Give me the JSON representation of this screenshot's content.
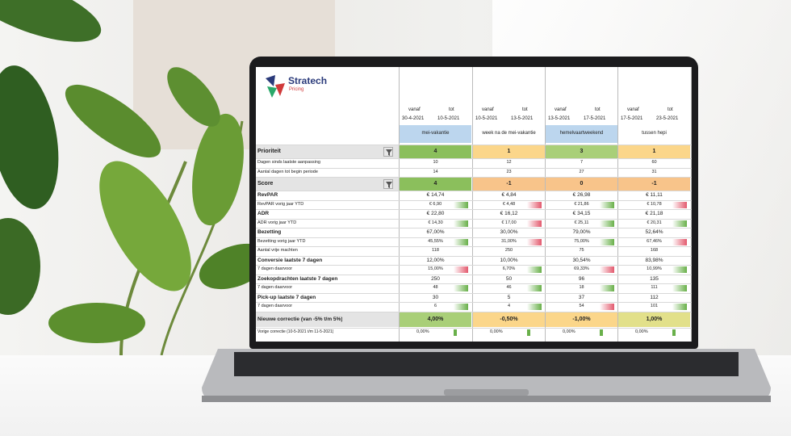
{
  "brand": {
    "name": "Stratech",
    "tagline": "Pricing",
    "colors": [
      "#2a3a7a",
      "#d03a3a",
      "#2aa86a"
    ]
  },
  "periods": [
    {
      "vanaf_label": "vanaf",
      "tot_label": "tot",
      "from": "30-4-2021",
      "to": "10-5-2021",
      "name": "mei-vakantie",
      "color": "#bcd6ee"
    },
    {
      "vanaf_label": "vanaf",
      "tot_label": "tot",
      "from": "10-5-2021",
      "to": "13-5-2021",
      "name": "week na de mei-vakantie",
      "color": "#ffffff"
    },
    {
      "vanaf_label": "vanaf",
      "tot_label": "tot",
      "from": "13-5-2021",
      "to": "17-5-2021",
      "name": "hemelvaartweekend",
      "color": "#bcd6ee"
    },
    {
      "vanaf_label": "vanaf",
      "tot_label": "tot",
      "from": "17-5-2021",
      "to": "23-5-2021",
      "name": "tussen hepi",
      "color": "#ffffff"
    }
  ],
  "prioriteit": {
    "label": "Prioriteit",
    "values": [
      "4",
      "1",
      "3",
      "1"
    ],
    "colors": [
      "#8bbf5c",
      "#fbd68a",
      "#a9cf78",
      "#fbd68a"
    ]
  },
  "sub1": [
    {
      "label": "Dagen sinds laatste aanpassing",
      "values": [
        "10",
        "12",
        "7",
        "60"
      ]
    },
    {
      "label": "Aantal dagen tot begin periode",
      "values": [
        "14",
        "23",
        "27",
        "31"
      ]
    }
  ],
  "score": {
    "label": "Score",
    "values": [
      "4",
      "-1",
      "0",
      "-1"
    ],
    "colors": [
      "#8bbf5c",
      "#f8c48a",
      "#f8c48a",
      "#f8c48a"
    ]
  },
  "metrics": [
    {
      "label": "RevPAR",
      "bold": true,
      "values": [
        "€ 14,74",
        "€ 4,84",
        "€ 26,98",
        "€ 11,11"
      ]
    },
    {
      "label": "RevPAR vorig jaar YTD",
      "values": [
        "€ 6,90",
        "€ 4,48",
        "€ 21,86",
        "€ 10,78"
      ],
      "bars": [
        "g",
        "r",
        "g",
        "r"
      ]
    },
    {
      "label": "ADR",
      "bold": true,
      "values": [
        "€ 22,80",
        "€ 16,12",
        "€ 34,15",
        "€ 21,18"
      ]
    },
    {
      "label": "ADR vorig jaar YTD",
      "values": [
        "€ 14,30",
        "€ 17,00",
        "€ 25,11",
        "€ 20,31"
      ],
      "bars": [
        "g",
        "r",
        "g",
        "g"
      ]
    },
    {
      "label": "Bezetting",
      "bold": true,
      "values": [
        "67,00%",
        "30,00%",
        "79,00%",
        "52,64%"
      ]
    },
    {
      "label": "Bezetting vorig jaar YTD",
      "values": [
        "45,55%",
        "31,00%",
        "75,00%",
        "67,46%"
      ],
      "bars": [
        "g",
        "r",
        "g",
        "r"
      ]
    },
    {
      "label": "Aantal vrije machten",
      "values": [
        "118",
        "250",
        "75",
        "168"
      ]
    },
    {
      "label": "Conversie laatste 7 dagen",
      "bold": true,
      "values": [
        "12,00%",
        "10,00%",
        "30,54%",
        "83,98%"
      ]
    },
    {
      "label": "7 dagen daarvoor",
      "values": [
        "15,00%",
        "6,70%",
        "69,33%",
        "10,99%"
      ],
      "bars": [
        "r",
        "g",
        "r",
        "g"
      ]
    },
    {
      "label": "Zoekopdrachten laatste 7 dagen",
      "bold": true,
      "values": [
        "250",
        "50",
        "96",
        "135"
      ]
    },
    {
      "label": "7 dagen daarvoor",
      "values": [
        "48",
        "46",
        "18",
        "111"
      ],
      "bars": [
        "g",
        "g",
        "g",
        "g"
      ]
    },
    {
      "label": "Pick-up laatste 7 dagen",
      "bold": true,
      "values": [
        "30",
        "5",
        "37",
        "112"
      ]
    },
    {
      "label": "7 dagen daarvoor",
      "values": [
        "6",
        "4",
        "54",
        "101"
      ],
      "bars": [
        "g",
        "g",
        "r",
        "g"
      ]
    }
  ],
  "correctie": {
    "label": "Nieuwe correctie (van -5% t/m 5%)",
    "values": [
      "4,00%",
      "-0,50%",
      "-1,00%",
      "1,00%"
    ],
    "colors": [
      "#a9cf78",
      "#fbd68a",
      "#fbd68a",
      "#e2e08a"
    ]
  },
  "vorige": {
    "label": "Vorige correctie (10-5-2021 t/m 11-5-2021)",
    "values": [
      "0,00%",
      "0,00%",
      "0,00%",
      "0,00%"
    ]
  }
}
